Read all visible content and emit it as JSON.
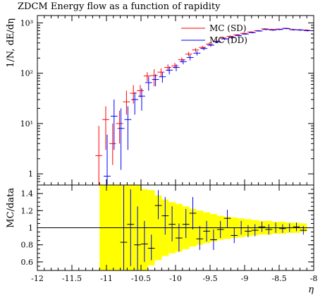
{
  "title": "ZDCM Energy flow as a function of rapidity",
  "chart_data": {
    "type": "scatter",
    "title": "ZDCM Energy flow as a function of rapidity",
    "xlabel": "η",
    "xlim": [
      -12,
      -8
    ],
    "xticks": [
      "-12",
      "-11.5",
      "-11",
      "-10.5",
      "-10",
      "-9.5",
      "-9",
      "-8.5",
      "-8"
    ],
    "main_panel": {
      "ylabel": "1/N, dE/dη",
      "yscale": "log",
      "ylim": [
        0.6,
        1400
      ],
      "yticks": [
        {
          "value": 1,
          "label": "1"
        },
        {
          "value": 10,
          "label": "10¹"
        },
        {
          "value": 100,
          "label": "10²"
        },
        {
          "value": 1000,
          "label": "10³"
        }
      ],
      "legend": {
        "placement": "top-right",
        "entries": [
          {
            "label": "MC (SD)",
            "color": "#ff0000"
          },
          {
            "label": "MC (DD)",
            "color": "#0000ff"
          }
        ]
      },
      "series": [
        {
          "name": "MC (SD)",
          "color": "#ff0000",
          "points": [
            {
              "x": -11.1,
              "y": 2.3,
              "lo": 0.5,
              "hi": 9
            },
            {
              "x": -11.0,
              "y": 12,
              "lo": 3,
              "hi": 22
            },
            {
              "x": -10.9,
              "y": 4,
              "lo": 1.5,
              "hi": 10
            },
            {
              "x": -10.8,
              "y": 10,
              "lo": 4,
              "hi": 18
            },
            {
              "x": -10.7,
              "y": 27,
              "lo": 15,
              "hi": 45
            },
            {
              "x": -10.6,
              "y": 40,
              "lo": 25,
              "hi": 58
            },
            {
              "x": -10.5,
              "y": 45,
              "lo": 33,
              "hi": 58
            },
            {
              "x": -10.4,
              "y": 88,
              "lo": 68,
              "hi": 105
            },
            {
              "x": -10.3,
              "y": 90,
              "lo": 55,
              "hi": 120
            },
            {
              "x": -10.2,
              "y": 105,
              "lo": 85,
              "hi": 125
            },
            {
              "x": -10.1,
              "y": 130,
              "lo": 110,
              "hi": 150
            },
            {
              "x": -10.0,
              "y": 140,
              "lo": 125,
              "hi": 160
            },
            {
              "x": -9.9,
              "y": 185,
              "lo": 165,
              "hi": 205
            },
            {
              "x": -9.8,
              "y": 240,
              "lo": 215,
              "hi": 265
            },
            {
              "x": -9.7,
              "y": 290,
              "lo": 265,
              "hi": 315
            },
            {
              "x": -9.6,
              "y": 325,
              "lo": 300,
              "hi": 350
            },
            {
              "x": -9.5,
              "y": 380,
              "lo": 355,
              "hi": 405
            },
            {
              "x": -9.4,
              "y": 430,
              "lo": 405,
              "hi": 455
            },
            {
              "x": -9.3,
              "y": 500,
              "lo": 475,
              "hi": 525
            },
            {
              "x": -9.2,
              "y": 540,
              "lo": 515,
              "hi": 565
            },
            {
              "x": -9.1,
              "y": 580,
              "lo": 560,
              "hi": 600
            },
            {
              "x": -9.0,
              "y": 620,
              "lo": 600,
              "hi": 640
            },
            {
              "x": -8.9,
              "y": 660,
              "lo": 640,
              "hi": 680
            },
            {
              "x": -8.8,
              "y": 700,
              "lo": 680,
              "hi": 720
            },
            {
              "x": -8.7,
              "y": 760,
              "lo": 735,
              "hi": 785
            },
            {
              "x": -8.6,
              "y": 740,
              "lo": 715,
              "hi": 765
            },
            {
              "x": -8.5,
              "y": 750,
              "lo": 725,
              "hi": 775
            },
            {
              "x": -8.4,
              "y": 780,
              "lo": 755,
              "hi": 805
            },
            {
              "x": -8.3,
              "y": 740,
              "lo": 715,
              "hi": 765
            },
            {
              "x": -8.2,
              "y": 730,
              "lo": 705,
              "hi": 755
            },
            {
              "x": -8.1,
              "y": 720,
              "lo": 695,
              "hi": 745
            }
          ]
        },
        {
          "name": "MC (DD)",
          "color": "#0000ff",
          "points": [
            {
              "x": -11.0,
              "y": 0.9,
              "lo": 0.6,
              "hi": 6
            },
            {
              "x": -10.9,
              "y": 14,
              "lo": 3,
              "hi": 30
            },
            {
              "x": -10.8,
              "y": 8,
              "lo": 1.2,
              "hi": 20
            },
            {
              "x": -10.7,
              "y": 12,
              "lo": 3,
              "hi": 22
            },
            {
              "x": -10.6,
              "y": 30,
              "lo": 15,
              "hi": 42
            },
            {
              "x": -10.5,
              "y": 35,
              "lo": 18,
              "hi": 50
            },
            {
              "x": -10.4,
              "y": 65,
              "lo": 45,
              "hi": 85
            },
            {
              "x": -10.3,
              "y": 75,
              "lo": 55,
              "hi": 95
            },
            {
              "x": -10.2,
              "y": 85,
              "lo": 65,
              "hi": 105
            },
            {
              "x": -10.1,
              "y": 115,
              "lo": 95,
              "hi": 135
            },
            {
              "x": -10.0,
              "y": 130,
              "lo": 110,
              "hi": 150
            },
            {
              "x": -9.9,
              "y": 170,
              "lo": 150,
              "hi": 190
            },
            {
              "x": -9.8,
              "y": 205,
              "lo": 180,
              "hi": 230
            },
            {
              "x": -9.7,
              "y": 250,
              "lo": 225,
              "hi": 275
            },
            {
              "x": -9.6,
              "y": 310,
              "lo": 285,
              "hi": 335
            },
            {
              "x": -9.5,
              "y": 360,
              "lo": 335,
              "hi": 385
            },
            {
              "x": -9.4,
              "y": 420,
              "lo": 395,
              "hi": 445
            },
            {
              "x": -9.3,
              "y": 480,
              "lo": 455,
              "hi": 505
            },
            {
              "x": -9.2,
              "y": 510,
              "lo": 485,
              "hi": 535
            },
            {
              "x": -9.1,
              "y": 560,
              "lo": 540,
              "hi": 580
            },
            {
              "x": -9.0,
              "y": 600,
              "lo": 580,
              "hi": 620
            },
            {
              "x": -8.9,
              "y": 640,
              "lo": 620,
              "hi": 660
            },
            {
              "x": -8.8,
              "y": 690,
              "lo": 670,
              "hi": 710
            },
            {
              "x": -8.7,
              "y": 740,
              "lo": 715,
              "hi": 765
            },
            {
              "x": -8.6,
              "y": 720,
              "lo": 695,
              "hi": 745
            },
            {
              "x": -8.5,
              "y": 740,
              "lo": 715,
              "hi": 765
            },
            {
              "x": -8.4,
              "y": 770,
              "lo": 745,
              "hi": 795
            },
            {
              "x": -8.3,
              "y": 730,
              "lo": 705,
              "hi": 755
            },
            {
              "x": -8.2,
              "y": 720,
              "lo": 695,
              "hi": 745
            },
            {
              "x": -8.1,
              "y": 700,
              "lo": 675,
              "hi": 725
            }
          ]
        }
      ]
    },
    "ratio_panel": {
      "ylabel": "MC/data",
      "ylim": [
        0.5,
        1.5
      ],
      "yticks": [
        {
          "value": 0.6,
          "label": "0.6"
        },
        {
          "value": 0.8,
          "label": "0.8"
        },
        {
          "value": 1.0,
          "label": "1"
        },
        {
          "value": 1.2,
          "label": "1.2"
        },
        {
          "value": 1.4,
          "label": "1.4"
        }
      ],
      "reference_line": 1,
      "uncertainty_band": {
        "color": "#ffff00",
        "bins": [
          {
            "x0": -11.1,
            "x1": -10.5,
            "lo": 0.5,
            "hi": 1.5
          },
          {
            "x0": -10.5,
            "x1": -10.4,
            "lo": 0.5,
            "hi": 1.45
          },
          {
            "x0": -10.4,
            "x1": -10.3,
            "lo": 0.56,
            "hi": 1.44
          },
          {
            "x0": -10.3,
            "x1": -10.2,
            "lo": 0.62,
            "hi": 1.38
          },
          {
            "x0": -10.2,
            "x1": -10.1,
            "lo": 0.67,
            "hi": 1.33
          },
          {
            "x0": -10.1,
            "x1": -10.0,
            "lo": 0.7,
            "hi": 1.3
          },
          {
            "x0": -10.0,
            "x1": -9.9,
            "lo": 0.72,
            "hi": 1.28
          },
          {
            "x0": -9.9,
            "x1": -9.8,
            "lo": 0.75,
            "hi": 1.25
          },
          {
            "x0": -9.8,
            "x1": -9.7,
            "lo": 0.78,
            "hi": 1.22
          },
          {
            "x0": -9.7,
            "x1": -9.6,
            "lo": 0.8,
            "hi": 1.2
          },
          {
            "x0": -9.6,
            "x1": -9.5,
            "lo": 0.82,
            "hi": 1.18
          },
          {
            "x0": -9.5,
            "x1": -9.4,
            "lo": 0.84,
            "hi": 1.16
          },
          {
            "x0": -9.4,
            "x1": -9.3,
            "lo": 0.86,
            "hi": 1.14
          },
          {
            "x0": -9.3,
            "x1": -9.2,
            "lo": 0.87,
            "hi": 1.13
          },
          {
            "x0": -9.2,
            "x1": -9.1,
            "lo": 0.88,
            "hi": 1.12
          },
          {
            "x0": -9.1,
            "x1": -9.0,
            "lo": 0.89,
            "hi": 1.11
          },
          {
            "x0": -9.0,
            "x1": -8.9,
            "lo": 0.9,
            "hi": 1.1
          },
          {
            "x0": -8.9,
            "x1": -8.8,
            "lo": 0.91,
            "hi": 1.09
          },
          {
            "x0": -8.8,
            "x1": -8.7,
            "lo": 0.92,
            "hi": 1.08
          },
          {
            "x0": -8.7,
            "x1": -8.6,
            "lo": 0.92,
            "hi": 1.08
          },
          {
            "x0": -8.6,
            "x1": -8.5,
            "lo": 0.93,
            "hi": 1.07
          },
          {
            "x0": -8.5,
            "x1": -8.4,
            "lo": 0.93,
            "hi": 1.07
          },
          {
            "x0": -8.4,
            "x1": -8.3,
            "lo": 0.94,
            "hi": 1.06
          },
          {
            "x0": -8.3,
            "x1": -8.2,
            "lo": 0.94,
            "hi": 1.06
          },
          {
            "x0": -8.2,
            "x1": -8.1,
            "lo": 0.95,
            "hi": 1.05
          }
        ]
      },
      "series": [
        {
          "name": "MC (DD)",
          "color": "#0000ff",
          "points": [
            {
              "x": -10.75,
              "y": 0.83,
              "lo": 0.5,
              "hi": 1.5
            },
            {
              "x": -10.65,
              "y": 1.04,
              "lo": 0.55,
              "hi": 1.45
            },
            {
              "x": -10.55,
              "y": 0.8,
              "lo": 0.5,
              "hi": 1.25
            },
            {
              "x": -10.45,
              "y": 0.81,
              "lo": 0.6,
              "hi": 1.08
            },
            {
              "x": -10.35,
              "y": 0.76,
              "lo": 0.62,
              "hi": 0.92
            },
            {
              "x": -10.25,
              "y": 1.26,
              "lo": 1.1,
              "hi": 1.44
            },
            {
              "x": -10.15,
              "y": 1.14,
              "lo": 0.92,
              "hi": 1.36
            },
            {
              "x": -10.05,
              "y": 1.04,
              "lo": 0.84,
              "hi": 1.25
            },
            {
              "x": -9.95,
              "y": 0.88,
              "lo": 0.72,
              "hi": 1.05
            },
            {
              "x": -9.85,
              "y": 1.04,
              "lo": 0.88,
              "hi": 1.22
            },
            {
              "x": -9.75,
              "y": 1.17,
              "lo": 0.98,
              "hi": 1.36
            },
            {
              "x": -9.65,
              "y": 0.87,
              "lo": 0.74,
              "hi": 1.02
            },
            {
              "x": -9.55,
              "y": 0.96,
              "lo": 0.84,
              "hi": 1.08
            },
            {
              "x": -9.45,
              "y": 0.86,
              "lo": 0.74,
              "hi": 0.98
            },
            {
              "x": -9.35,
              "y": 0.98,
              "lo": 0.88,
              "hi": 1.08
            },
            {
              "x": -9.25,
              "y": 1.11,
              "lo": 1.0,
              "hi": 1.21
            },
            {
              "x": -9.15,
              "y": 0.91,
              "lo": 0.82,
              "hi": 1.0
            },
            {
              "x": -9.05,
              "y": 1.0,
              "lo": 0.92,
              "hi": 1.08
            },
            {
              "x": -8.95,
              "y": 0.96,
              "lo": 0.89,
              "hi": 1.03
            },
            {
              "x": -8.85,
              "y": 0.97,
              "lo": 0.9,
              "hi": 1.04
            },
            {
              "x": -8.75,
              "y": 1.01,
              "lo": 0.95,
              "hi": 1.07
            },
            {
              "x": -8.65,
              "y": 0.98,
              "lo": 0.92,
              "hi": 1.04
            },
            {
              "x": -8.55,
              "y": 1.0,
              "lo": 0.94,
              "hi": 1.06
            },
            {
              "x": -8.45,
              "y": 0.99,
              "lo": 0.94,
              "hi": 1.04
            },
            {
              "x": -8.35,
              "y": 1.0,
              "lo": 0.95,
              "hi": 1.05
            },
            {
              "x": -8.25,
              "y": 1.01,
              "lo": 0.96,
              "hi": 1.06
            },
            {
              "x": -8.15,
              "y": 0.97,
              "lo": 0.92,
              "hi": 1.02
            }
          ]
        }
      ]
    }
  }
}
